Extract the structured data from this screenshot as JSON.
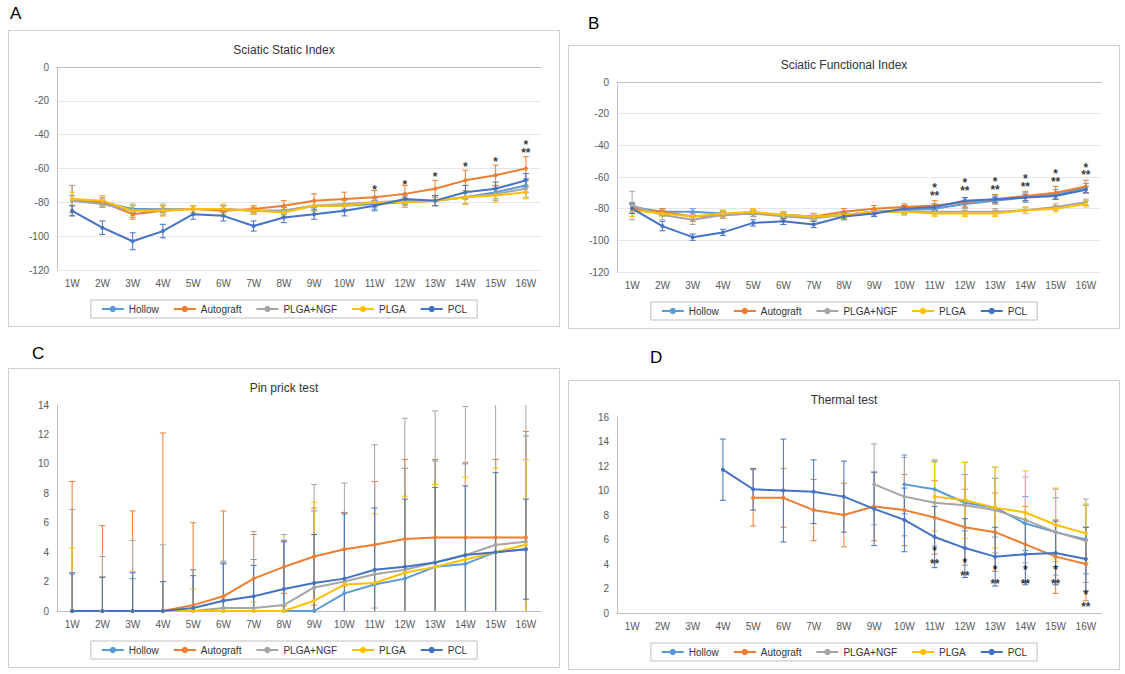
{
  "chart_data": [
    {
      "type": "line",
      "panel": "A",
      "title": "Sciatic Static Index",
      "categories": [
        "1W",
        "2W",
        "3W",
        "4W",
        "5W",
        "6W",
        "7W",
        "8W",
        "9W",
        "10W",
        "11W",
        "12W",
        "13W",
        "14W",
        "15W",
        "16W"
      ],
      "ylim": [
        -120,
        0
      ],
      "yticks": [
        -120,
        -100,
        -80,
        -60,
        -40,
        -20,
        0
      ],
      "grid": true,
      "legend": "bottom",
      "series": [
        {
          "name": "Hollow",
          "color": "#5b9bd5",
          "marker": "circle",
          "values": [
            -79,
            -80,
            -84,
            -84,
            -84,
            -84,
            -85,
            -85,
            -82,
            -82,
            -81,
            -80,
            -79,
            -77,
            -74,
            -70
          ],
          "errors": [
            3,
            2,
            2,
            2,
            2,
            2,
            2,
            2,
            3,
            3,
            3,
            3,
            3,
            4,
            4,
            4
          ]
        },
        {
          "name": "Autograft",
          "color": "#ed7d31",
          "marker": "circle",
          "values": [
            -78,
            -80,
            -87,
            -85,
            -84,
            -85,
            -84,
            -82,
            -79,
            -78,
            -77,
            -75,
            -72,
            -67,
            -64,
            -60
          ],
          "errors": [
            8,
            3,
            3,
            3,
            2,
            3,
            2,
            3,
            4,
            4,
            4,
            5,
            5,
            6,
            6,
            7
          ]
        },
        {
          "name": "PLGA+NGF",
          "color": "#a5a5a5",
          "marker": "circle",
          "values": [
            -79,
            -81,
            -85,
            -84,
            -84,
            -84,
            -85,
            -85,
            -82,
            -81,
            -80,
            -79,
            -79,
            -77,
            -75,
            -72
          ],
          "errors": [
            9,
            2,
            4,
            3,
            2,
            2,
            2,
            2,
            3,
            3,
            3,
            3,
            3,
            4,
            4,
            5
          ]
        },
        {
          "name": "PLGA",
          "color": "#ffc000",
          "marker": "circle",
          "values": [
            -78,
            -79,
            -85,
            -85,
            -84,
            -84,
            -85,
            -86,
            -82,
            -82,
            -80,
            -80,
            -79,
            -77,
            -76,
            -74
          ],
          "errors": [
            4,
            3,
            3,
            3,
            2,
            3,
            2,
            2,
            3,
            3,
            3,
            3,
            3,
            4,
            4,
            4
          ]
        },
        {
          "name": "PCL",
          "color": "#4472c4",
          "marker": "circle",
          "values": [
            -85,
            -95,
            -103,
            -97,
            -87,
            -88,
            -94,
            -89,
            -87,
            -85,
            -82,
            -78,
            -79,
            -74,
            -72,
            -67
          ],
          "errors": [
            3,
            4,
            5,
            4,
            3,
            3,
            3,
            3,
            3,
            3,
            3,
            3,
            3,
            4,
            4,
            4
          ]
        }
      ],
      "annotations": [
        {
          "x": "11W",
          "y": -73,
          "text": "*"
        },
        {
          "x": "12W",
          "y": -70,
          "text": "*"
        },
        {
          "x": "13W",
          "y": -65,
          "text": "*"
        },
        {
          "x": "14W",
          "y": -59,
          "text": "*"
        },
        {
          "x": "15W",
          "y": -56,
          "text": "*"
        },
        {
          "x": "16W",
          "y": -46,
          "text": "*"
        },
        {
          "x": "16W",
          "y": -51,
          "text": "**"
        }
      ]
    },
    {
      "type": "line",
      "panel": "B",
      "title": "Sciatic Functional Index",
      "categories": [
        "1W",
        "2W",
        "3W",
        "4W",
        "5W",
        "6W",
        "7W",
        "8W",
        "9W",
        "10W",
        "11W",
        "12W",
        "13W",
        "14W",
        "15W",
        "16W"
      ],
      "ylim": [
        -120,
        0
      ],
      "yticks": [
        -120,
        -100,
        -80,
        -60,
        -40,
        -20,
        0
      ],
      "grid": true,
      "legend": "bottom",
      "series": [
        {
          "name": "Hollow",
          "color": "#5b9bd5",
          "marker": "circle",
          "values": [
            -79,
            -82,
            -82,
            -83,
            -83,
            -84,
            -85,
            -84,
            -82,
            -81,
            -80,
            -77,
            -75,
            -73,
            -71,
            -67
          ],
          "errors": [
            3,
            2,
            2,
            2,
            2,
            2,
            2,
            2,
            2,
            2,
            2,
            2,
            2,
            3,
            3,
            3
          ]
        },
        {
          "name": "Autograft",
          "color": "#ed7d31",
          "marker": "circle",
          "values": [
            -80,
            -82,
            -85,
            -84,
            -83,
            -84,
            -85,
            -82,
            -80,
            -79,
            -78,
            -76,
            -74,
            -72,
            -70,
            -66
          ],
          "errors": [
            3,
            2,
            3,
            2,
            2,
            2,
            2,
            2,
            2,
            2,
            3,
            3,
            3,
            3,
            4,
            4
          ]
        },
        {
          "name": "PLGA+NGF",
          "color": "#a5a5a5",
          "marker": "circle",
          "values": [
            -78,
            -84,
            -87,
            -84,
            -83,
            -85,
            -86,
            -84,
            -82,
            -82,
            -82,
            -82,
            -82,
            -81,
            -79,
            -76
          ],
          "errors": [
            9,
            3,
            3,
            2,
            2,
            2,
            2,
            2,
            2,
            2,
            2,
            2,
            2,
            2,
            2,
            2
          ]
        },
        {
          "name": "PLGA",
          "color": "#ffc000",
          "marker": "circle",
          "values": [
            -81,
            -83,
            -85,
            -83,
            -82,
            -84,
            -85,
            -84,
            -82,
            -82,
            -83,
            -83,
            -83,
            -81,
            -80,
            -77
          ],
          "errors": [
            4,
            2,
            2,
            2,
            2,
            2,
            2,
            2,
            2,
            2,
            2,
            2,
            2,
            2,
            2,
            2
          ]
        },
        {
          "name": "PCL",
          "color": "#4472c4",
          "marker": "circle",
          "values": [
            -80,
            -91,
            -98,
            -95,
            -89,
            -88,
            -90,
            -85,
            -83,
            -80,
            -79,
            -75,
            -74,
            -73,
            -72,
            -68
          ],
          "errors": [
            3,
            3,
            2,
            2,
            2,
            2,
            2,
            2,
            2,
            2,
            2,
            2,
            2,
            2,
            2,
            2
          ]
        }
      ],
      "annotations": [
        {
          "x": "11W",
          "y": -67,
          "text": "*"
        },
        {
          "x": "11W",
          "y": -72,
          "text": "**"
        },
        {
          "x": "12W",
          "y": -64,
          "text": "*"
        },
        {
          "x": "12W",
          "y": -69,
          "text": "**"
        },
        {
          "x": "13W",
          "y": -63,
          "text": "*"
        },
        {
          "x": "13W",
          "y": -68,
          "text": "**"
        },
        {
          "x": "14W",
          "y": -61,
          "text": "*"
        },
        {
          "x": "14W",
          "y": -66,
          "text": "**"
        },
        {
          "x": "15W",
          "y": -58,
          "text": "*"
        },
        {
          "x": "15W",
          "y": -63,
          "text": "**"
        },
        {
          "x": "16W",
          "y": -54,
          "text": "*"
        },
        {
          "x": "16W",
          "y": -59,
          "text": "**"
        }
      ]
    },
    {
      "type": "line",
      "panel": "C",
      "title": "Pin prick test",
      "categories": [
        "1W",
        "2W",
        "3W",
        "4W",
        "5W",
        "6W",
        "7W",
        "8W",
        "9W",
        "10W",
        "11W",
        "12W",
        "13W",
        "14W",
        "15W",
        "16W"
      ],
      "ylim": [
        0,
        14
      ],
      "yticks": [
        0,
        2,
        4,
        6,
        8,
        10,
        12,
        14
      ],
      "grid": false,
      "legend": "bottom",
      "series": [
        {
          "name": "Hollow",
          "color": "#5b9bd5",
          "marker": "circle",
          "values": [
            0,
            0,
            0,
            0,
            0,
            0,
            0,
            0,
            0,
            1.2,
            1.8,
            2.2,
            3.0,
            3.2,
            4.0,
            4.2
          ],
          "errors": [
            2.5,
            2.3,
            2.2,
            2,
            2.8,
            3.3,
            3.5,
            4.8,
            6.8,
            5.5,
            7,
            7.5,
            7.2,
            6.8,
            6.3,
            7.7
          ]
        },
        {
          "name": "Autograft",
          "color": "#ed7d31",
          "marker": "circle",
          "values": [
            0,
            0,
            0,
            0,
            0.4,
            1.0,
            2.2,
            3.0,
            3.7,
            4.2,
            4.5,
            4.9,
            5,
            5,
            5,
            5
          ],
          "errors": [
            8.8,
            5.8,
            6.8,
            12.1,
            5.6,
            5.8,
            3,
            1.8,
            3.3,
            2.5,
            4.3,
            5.4,
            5.3,
            5.1,
            5.3,
            7.2
          ]
        },
        {
          "name": "PLGA+NGF",
          "color": "#a5a5a5",
          "marker": "circle",
          "values": [
            0,
            0,
            0,
            0,
            0,
            0.2,
            0.2,
            0.4,
            1.6,
            2.0,
            2.5,
            2.8,
            3.3,
            3.8,
            4.5,
            4.7
          ],
          "errors": [
            6.9,
            3.7,
            4.8,
            4.5,
            2.8,
            3.2,
            5.2,
            4.8,
            7,
            6.7,
            8.8,
            10.3,
            10.3,
            10.1,
            10.3,
            12.2
          ]
        },
        {
          "name": "PLGA",
          "color": "#ffc000",
          "marker": "circle",
          "values": [
            0,
            0,
            0,
            0,
            0,
            0,
            0,
            0,
            0.7,
            1.8,
            1.9,
            2.6,
            3.0,
            3.5,
            4.0,
            4.5
          ],
          "errors": [
            4.3,
            2.3,
            2.7,
            2,
            1.5,
            0.8,
            0.6,
            0.3,
            6.7,
            2.4,
            4.7,
            5.2,
            5.6,
            5.6,
            5.7,
            5.8
          ]
        },
        {
          "name": "PCL",
          "color": "#4472c4",
          "marker": "circle",
          "values": [
            0,
            0,
            0,
            0,
            0.2,
            0.7,
            1.0,
            1.5,
            1.9,
            2.2,
            2.8,
            3.0,
            3.3,
            3.8,
            4.0,
            4.2
          ],
          "errors": [
            2.6,
            2.3,
            2.6,
            2,
            2.2,
            2.5,
            2.1,
            3.2,
            3.3,
            4.4,
            4.2,
            4.6,
            5.1,
            4.7,
            5.4,
            3.4
          ]
        }
      ],
      "annotations": []
    },
    {
      "type": "line",
      "panel": "D",
      "title": "Thermal test",
      "categories": [
        "1W",
        "2W",
        "3W",
        "4W",
        "5W",
        "6W",
        "7W",
        "8W",
        "9W",
        "10W",
        "11W",
        "12W",
        "13W",
        "14W",
        "15W",
        "16W"
      ],
      "ylim": [
        0,
        16
      ],
      "yticks": [
        0,
        2,
        4,
        6,
        8,
        10,
        12,
        14,
        16
      ],
      "grid": false,
      "legend": "bottom",
      "series": [
        {
          "name": "Hollow",
          "color": "#5b9bd5",
          "marker": "circle",
          "values": [
            null,
            null,
            null,
            null,
            null,
            null,
            null,
            null,
            null,
            10.5,
            10.1,
            9.0,
            8.6,
            7.3,
            6.6,
            6.0
          ],
          "errors": [
            null,
            null,
            null,
            null,
            null,
            null,
            null,
            null,
            null,
            2.4,
            2.3,
            2.3,
            2.4,
            2.2,
            2.8,
            2.8
          ]
        },
        {
          "name": "Autograft",
          "color": "#ed7d31",
          "marker": "circle",
          "values": [
            null,
            null,
            null,
            null,
            9.4,
            9.4,
            8.4,
            8.0,
            8.7,
            8.4,
            7.8,
            7.0,
            6.6,
            5.6,
            4.6,
            4.0
          ],
          "errors": [
            null,
            null,
            null,
            null,
            2.3,
            2.4,
            2.5,
            2.6,
            2.8,
            2.9,
            3.0,
            3.1,
            3.2,
            3.1,
            3.0,
            3.0
          ]
        },
        {
          "name": "PLGA+NGF",
          "color": "#a5a5a5",
          "marker": "circle",
          "values": [
            null,
            null,
            null,
            null,
            null,
            null,
            null,
            null,
            10.5,
            9.5,
            9.0,
            8.8,
            8.4,
            7.6,
            6.6,
            5.9
          ],
          "errors": [
            null,
            null,
            null,
            null,
            null,
            null,
            null,
            null,
            3.3,
            3.2,
            3.5,
            3.5,
            3.5,
            3.5,
            3.5,
            3.4
          ]
        },
        {
          "name": "PLGA",
          "color": "#ffc000",
          "marker": "circle",
          "values": [
            null,
            null,
            null,
            null,
            null,
            null,
            null,
            null,
            null,
            null,
            9.5,
            9.2,
            8.6,
            8.2,
            7.2,
            6.5
          ],
          "errors": [
            null,
            null,
            null,
            null,
            null,
            null,
            null,
            null,
            null,
            null,
            2.8,
            3.1,
            3.3,
            3.4,
            3.0,
            2.4
          ]
        },
        {
          "name": "PCL",
          "color": "#4472c4",
          "marker": "circle",
          "values": [
            null,
            null,
            null,
            11.7,
            10.1,
            10.0,
            9.9,
            9.5,
            8.5,
            7.6,
            6.2,
            5.3,
            4.6,
            4.8,
            4.9,
            4.4
          ],
          "errors": [
            null,
            null,
            null,
            2.5,
            1.7,
            4.2,
            2.6,
            2.9,
            3.0,
            2.6,
            2.5,
            2.4,
            2.4,
            2.5,
            2.6,
            2.6
          ]
        }
      ],
      "annotations": [
        {
          "x": "11W",
          "y": 5.1,
          "text": "*"
        },
        {
          "x": "11W",
          "y": 4.0,
          "text": "**"
        },
        {
          "x": "12W",
          "y": 4.1,
          "text": "*"
        },
        {
          "x": "12W",
          "y": 3.0,
          "text": "**"
        },
        {
          "x": "13W",
          "y": 3.5,
          "text": "*"
        },
        {
          "x": "13W",
          "y": 2.4,
          "text": "**"
        },
        {
          "x": "14W",
          "y": 3.5,
          "text": "*"
        },
        {
          "x": "14W",
          "y": 2.4,
          "text": "**"
        },
        {
          "x": "15W",
          "y": 3.5,
          "text": "*"
        },
        {
          "x": "15W",
          "y": 2.4,
          "text": "**"
        },
        {
          "x": "16W",
          "y": 1.5,
          "text": "*"
        },
        {
          "x": "16W",
          "y": 0.5,
          "text": "**"
        }
      ]
    }
  ]
}
